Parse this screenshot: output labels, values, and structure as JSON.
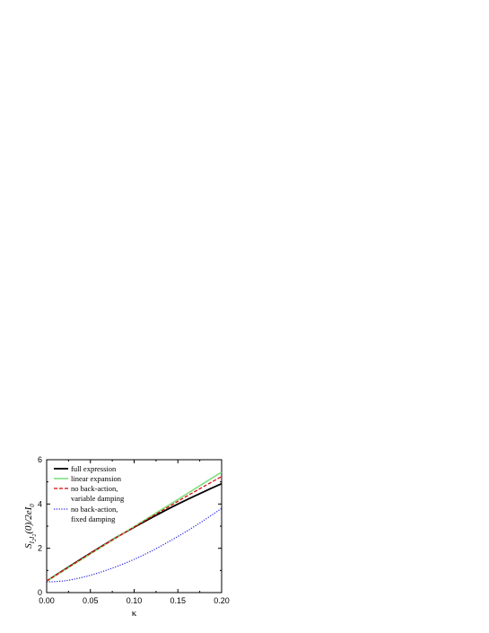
{
  "chart_data": {
    "type": "line",
    "xlabel": "κ",
    "ylabel": "S_{I_2I_2}(0)/2eI_0",
    "ylabel_parts": {
      "main": "S",
      "sub": "I",
      "subsub": "2",
      "sub2": "I",
      "subsub2": "2",
      "rest": "(0)/2eI",
      "tail": "0"
    },
    "xlim": [
      0.0,
      0.2
    ],
    "ylim": [
      0,
      6
    ],
    "xticks": [
      "0.00",
      "0.05",
      "0.10",
      "0.15",
      "0.20"
    ],
    "yticks": [
      "0",
      "2",
      "4",
      "6"
    ],
    "grid": false,
    "legend_position": "top-left",
    "x": [
      0.0,
      0.02,
      0.04,
      0.06,
      0.08,
      0.1,
      0.12,
      0.14,
      0.16,
      0.18,
      0.2
    ],
    "series": [
      {
        "name": "full expression",
        "color": "#000000",
        "style": "solid",
        "values": [
          0.52,
          1.03,
          1.53,
          2.02,
          2.5,
          2.95,
          3.38,
          3.8,
          4.19,
          4.56,
          4.92
        ]
      },
      {
        "name": "linear expansion",
        "color": "#7fe07f",
        "style": "solid",
        "values": [
          0.52,
          1.01,
          1.5,
          2.0,
          2.49,
          2.98,
          3.47,
          3.96,
          4.45,
          4.95,
          5.44
        ]
      },
      {
        "name": "no back-action,",
        "name_line2": "variable damping",
        "color": "#e00000",
        "style": "dashed",
        "values": [
          0.52,
          1.02,
          1.52,
          2.01,
          2.49,
          2.96,
          3.43,
          3.89,
          4.35,
          4.8,
          5.24
        ]
      },
      {
        "name": "no back-action,",
        "name_line2": "fixed damping",
        "color": "#2020e0",
        "style": "dotted",
        "values": [
          0.48,
          0.53,
          0.68,
          0.9,
          1.18,
          1.5,
          1.88,
          2.31,
          2.77,
          3.27,
          3.8
        ]
      }
    ]
  }
}
